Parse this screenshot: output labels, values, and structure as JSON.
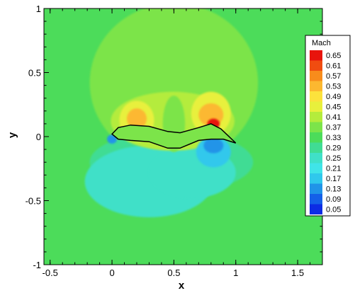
{
  "chart_data": {
    "type": "heatmap",
    "title": "",
    "xlabel": "x",
    "ylabel": "y",
    "xlim": [
      -0.55,
      1.7
    ],
    "ylim": [
      -1.0,
      1.0
    ],
    "x_ticks": [
      {
        "value": -0.5,
        "label": "-0.5"
      },
      {
        "value": 0,
        "label": "0"
      },
      {
        "value": 0.5,
        "label": "0.5"
      },
      {
        "value": 1,
        "label": "1"
      },
      {
        "value": 1.5,
        "label": "1.5"
      }
    ],
    "y_ticks": [
      {
        "value": 1,
        "label": "1"
      },
      {
        "value": 0.5,
        "label": "0.5"
      },
      {
        "value": 0,
        "label": "0"
      },
      {
        "value": -0.5,
        "label": "-0.5"
      },
      {
        "value": -1,
        "label": "-1"
      }
    ],
    "colorbar": {
      "title": "Mach",
      "levels": [
        {
          "label": "0.65",
          "color": "#e8140c"
        },
        {
          "label": "0.61",
          "color": "#f04c10"
        },
        {
          "label": "0.57",
          "color": "#f88c1c"
        },
        {
          "label": "0.53",
          "color": "#fcb830"
        },
        {
          "label": "0.49",
          "color": "#fce23c"
        },
        {
          "label": "0.45",
          "color": "#e8f03c"
        },
        {
          "label": "0.41",
          "color": "#b4ec3c"
        },
        {
          "label": "0.37",
          "color": "#7ce44a"
        },
        {
          "label": "0.33",
          "color": "#4cdc5a"
        },
        {
          "label": "0.29",
          "color": "#40dc94"
        },
        {
          "label": "0.25",
          "color": "#40e0c8"
        },
        {
          "label": "0.21",
          "color": "#40e4e8"
        },
        {
          "label": "0.17",
          "color": "#30c8ec"
        },
        {
          "label": "0.13",
          "color": "#2094e8"
        },
        {
          "label": "0.09",
          "color": "#1460e8"
        },
        {
          "label": "0.05",
          "color": "#0c2ce4"
        }
      ]
    },
    "field": {
      "freestream": "#4cdc5a",
      "lower_region": "#40dc94",
      "wake": "#40e0c8",
      "upper_bubble": "#7ce44a",
      "yellow_green": "#b4ec3c",
      "yellow": "#e8f03c",
      "orange": "#fcb830",
      "red": "#e8140c",
      "blue": "#2094e8",
      "light_blue": "#30c8ec"
    },
    "airfoil": {
      "upper": [
        [
          0,
          0.02
        ],
        [
          0.05,
          0.07
        ],
        [
          0.15,
          0.09
        ],
        [
          0.3,
          0.08
        ],
        [
          0.45,
          0.04
        ],
        [
          0.55,
          0.03
        ],
        [
          0.7,
          0.07
        ],
        [
          0.8,
          0.1
        ],
        [
          0.88,
          0.06
        ],
        [
          1.0,
          -0.05
        ]
      ],
      "lower": [
        [
          1.0,
          -0.05
        ],
        [
          0.9,
          -0.02
        ],
        [
          0.8,
          -0.02
        ],
        [
          0.7,
          -0.03
        ],
        [
          0.55,
          -0.09
        ],
        [
          0.45,
          -0.09
        ],
        [
          0.3,
          -0.04
        ],
        [
          0.15,
          -0.03
        ],
        [
          0.05,
          -0.02
        ],
        [
          0,
          0.02
        ]
      ]
    }
  }
}
